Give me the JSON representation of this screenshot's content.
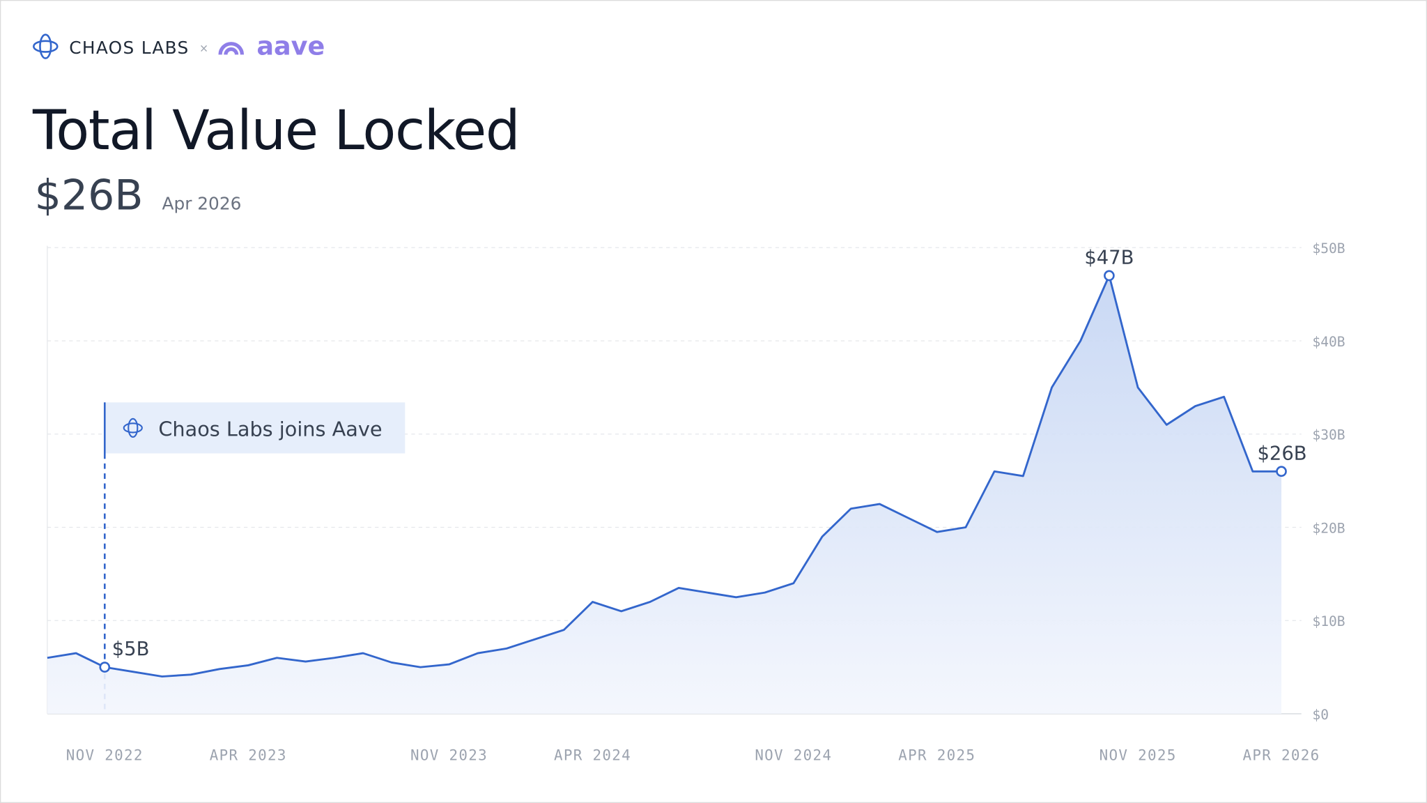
{
  "brand": "CHAOS LABS",
  "separator": "×",
  "partner": "aave",
  "chart_data": {
    "type": "area",
    "title": "Total Value Locked",
    "headline": "$26B",
    "headline_date": "Apr 2026",
    "x": [
      "2022-09",
      "2022-10",
      "2022-11",
      "2022-12",
      "2023-01",
      "2023-02",
      "2023-03",
      "2023-04",
      "2023-05",
      "2023-06",
      "2023-07",
      "2023-08",
      "2023-09",
      "2023-10",
      "2023-11",
      "2023-12",
      "2024-01",
      "2024-02",
      "2024-03",
      "2024-04",
      "2024-05",
      "2024-06",
      "2024-07",
      "2024-08",
      "2024-09",
      "2024-10",
      "2024-11",
      "2024-12",
      "2025-01",
      "2025-02",
      "2025-03",
      "2025-04",
      "2025-05",
      "2025-06",
      "2025-07",
      "2025-08",
      "2025-09",
      "2025-10",
      "2025-11",
      "2025-12",
      "2026-01",
      "2026-02",
      "2026-03",
      "2026-04"
    ],
    "series": [
      {
        "name": "Total Value Locked",
        "color": "#3366cc",
        "values": [
          6,
          6.5,
          5,
          4.5,
          4,
          4.2,
          4.8,
          5.2,
          6,
          5.6,
          6,
          6.5,
          5.5,
          5,
          5.3,
          6.5,
          7,
          8,
          9,
          12,
          11,
          12,
          13.5,
          13,
          12.5,
          13,
          14,
          19,
          22,
          22.5,
          21,
          19.5,
          20,
          26,
          25.5,
          35,
          40,
          47,
          35,
          31,
          33,
          34,
          26,
          26
        ],
        "value_labels": [
          null,
          null,
          "$5B",
          null,
          null,
          null,
          null,
          null,
          null,
          null,
          null,
          null,
          null,
          null,
          null,
          null,
          null,
          null,
          null,
          null,
          null,
          null,
          null,
          null,
          null,
          null,
          null,
          null,
          null,
          null,
          null,
          null,
          null,
          null,
          null,
          null,
          null,
          "$47B",
          null,
          null,
          null,
          null,
          null,
          "$26B"
        ]
      }
    ],
    "xlim": [
      "2022-09",
      "2026-04"
    ],
    "xticks": [
      {
        "value": "2022-11",
        "label": "NOV 2022"
      },
      {
        "value": "2023-04",
        "label": "APR 2023"
      },
      {
        "value": "2023-11",
        "label": "NOV 2023"
      },
      {
        "value": "2024-04",
        "label": "APR 2024"
      },
      {
        "value": "2024-11",
        "label": "NOV 2024"
      },
      {
        "value": "2025-04",
        "label": "APR 2025"
      },
      {
        "value": "2025-11",
        "label": "NOV 2025"
      },
      {
        "value": "2026-04",
        "label": "APR 2026"
      }
    ],
    "ylim": [
      0,
      50
    ],
    "yticks": [
      {
        "value": 0,
        "label": "$0"
      },
      {
        "value": 10,
        "label": "$10B"
      },
      {
        "value": 20,
        "label": "$20B"
      },
      {
        "value": 30,
        "label": "$30B"
      },
      {
        "value": 40,
        "label": "$40B"
      },
      {
        "value": 50,
        "label": "$50B"
      }
    ],
    "grid": true,
    "annotation": {
      "x": "2022-11",
      "text": "Chaos Labs joins Aave"
    }
  }
}
